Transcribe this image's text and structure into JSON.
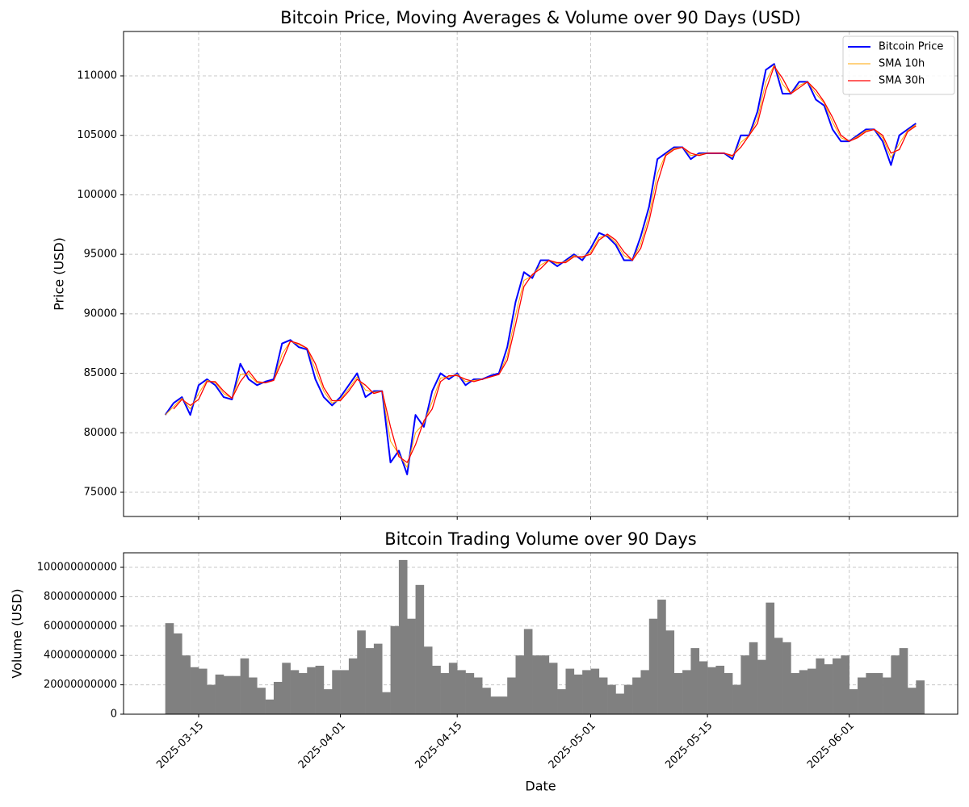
{
  "chart_data": [
    {
      "type": "line",
      "title": "Bitcoin Price, Moving Averages & Volume over 90 Days (USD)",
      "ylabel": "Price (USD)",
      "x": [
        "2025-03-11",
        "2025-03-12",
        "2025-03-13",
        "2025-03-14",
        "2025-03-15",
        "2025-03-16",
        "2025-03-17",
        "2025-03-18",
        "2025-03-19",
        "2025-03-20",
        "2025-03-21",
        "2025-03-22",
        "2025-03-23",
        "2025-03-24",
        "2025-03-25",
        "2025-03-26",
        "2025-03-27",
        "2025-03-28",
        "2025-03-29",
        "2025-03-30",
        "2025-03-31",
        "2025-04-01",
        "2025-04-02",
        "2025-04-03",
        "2025-04-04",
        "2025-04-05",
        "2025-04-06",
        "2025-04-07",
        "2025-04-08",
        "2025-04-09",
        "2025-04-10",
        "2025-04-11",
        "2025-04-12",
        "2025-04-13",
        "2025-04-14",
        "2025-04-15",
        "2025-04-16",
        "2025-04-17",
        "2025-04-18",
        "2025-04-19",
        "2025-04-20",
        "2025-04-21",
        "2025-04-22",
        "2025-04-23",
        "2025-04-24",
        "2025-04-25",
        "2025-04-26",
        "2025-04-27",
        "2025-04-28",
        "2025-04-29",
        "2025-04-30",
        "2025-05-01",
        "2025-05-02",
        "2025-05-03",
        "2025-05-04",
        "2025-05-05",
        "2025-05-06",
        "2025-05-07",
        "2025-05-08",
        "2025-05-09",
        "2025-05-10",
        "2025-05-11",
        "2025-05-12",
        "2025-05-13",
        "2025-05-14",
        "2025-05-15",
        "2025-05-16",
        "2025-05-17",
        "2025-05-18",
        "2025-05-19",
        "2025-05-20",
        "2025-05-21",
        "2025-05-22",
        "2025-05-23",
        "2025-05-24",
        "2025-05-25",
        "2025-05-26",
        "2025-05-27",
        "2025-05-28",
        "2025-05-29",
        "2025-05-30",
        "2025-05-31",
        "2025-06-01",
        "2025-06-02",
        "2025-06-03",
        "2025-06-04",
        "2025-06-05",
        "2025-06-06",
        "2025-06-07",
        "2025-06-08",
        "2025-06-09"
      ],
      "series": [
        {
          "name": "Bitcoin Price",
          "color": "#0000ff",
          "width": 2,
          "values": [
            81500,
            82500,
            83000,
            81500,
            84000,
            84500,
            84000,
            83000,
            82800,
            85800,
            84500,
            84000,
            84300,
            84500,
            87500,
            87800,
            87200,
            87000,
            84500,
            83000,
            82300,
            83000,
            84000,
            85000,
            83000,
            83500,
            83500,
            77500,
            78500,
            76500,
            81500,
            80500,
            83500,
            85000,
            84500,
            85000,
            84000,
            84500,
            84500,
            84800,
            85000,
            87200,
            91000,
            93500,
            93000,
            94500,
            94500,
            94000,
            94500,
            95000,
            94500,
            95500,
            96800,
            96500,
            95800,
            94500,
            94500,
            96500,
            99000,
            103000,
            103500,
            104000,
            104000,
            103000,
            103500,
            103500,
            103500,
            103500,
            103000,
            105000,
            105000,
            107000,
            110500,
            111000,
            108500,
            108500,
            109500,
            109500,
            108000,
            107500,
            105500,
            104500,
            104500,
            105000,
            105500,
            105500,
            104500,
            102500,
            105000,
            105500,
            106000
          ]
        },
        {
          "name": "SMA 10h",
          "color": "#ffa500",
          "width": 1,
          "values": [
            81500,
            82200,
            82900,
            82000,
            83300,
            84400,
            84200,
            83300,
            82900,
            84900,
            84900,
            84200,
            84200,
            84400,
            86600,
            87700,
            87400,
            87100,
            85300,
            83500,
            82500,
            82800,
            83700,
            84700,
            83600,
            83400,
            83500,
            79300,
            78200,
            77100,
            80000,
            80800,
            82600,
            84600,
            84700,
            84900,
            84300,
            84400,
            84500,
            84700,
            84900,
            86500,
            89900,
            92800,
            93200,
            94100,
            94500,
            94200,
            94400,
            94900,
            94700,
            95200,
            96400,
            96600,
            96000,
            94900,
            94500,
            95900,
            98300,
            101800,
            103400,
            103900,
            104000,
            103300,
            103400,
            103500,
            103500,
            103500,
            103200,
            104400,
            105000,
            106400,
            109500,
            110900,
            109300,
            108500,
            109200,
            109500,
            108500,
            107700,
            106100,
            104800,
            104500,
            104900,
            105400,
            105500,
            104800,
            103100,
            104300,
            105400,
            105900
          ]
        },
        {
          "name": "SMA 30h",
          "color": "#ff0000",
          "width": 1.3,
          "values": [
            null,
            82000,
            82800,
            82300,
            82800,
            84300,
            84300,
            83500,
            82900,
            84300,
            85200,
            84300,
            84200,
            84400,
            86000,
            87700,
            87500,
            87100,
            85800,
            83800,
            82700,
            82700,
            83500,
            84500,
            84000,
            83300,
            83500,
            80500,
            78000,
            77500,
            79000,
            81000,
            82000,
            84300,
            84800,
            84800,
            84500,
            84300,
            84500,
            84700,
            84900,
            86100,
            89100,
            92300,
            93300,
            93800,
            94500,
            94300,
            94300,
            94800,
            94800,
            95000,
            96200,
            96700,
            96200,
            95200,
            94500,
            95500,
            97800,
            101000,
            103300,
            103800,
            104000,
            103500,
            103300,
            103500,
            103500,
            103500,
            103300,
            104000,
            105000,
            106000,
            108800,
            110800,
            109800,
            108500,
            109000,
            109500,
            108800,
            107800,
            106500,
            105000,
            104500,
            104800,
            105300,
            105500,
            105000,
            103500,
            103800,
            105300,
            105800
          ]
        }
      ],
      "xlim": [
        "2025-03-06",
        "2025-06-14"
      ],
      "xticks": [
        "2025-03-15",
        "2025-04-01",
        "2025-04-15",
        "2025-05-01",
        "2025-05-15",
        "2025-06-01"
      ],
      "ylim": [
        72965,
        113730
      ],
      "yticks": [
        75000,
        80000,
        85000,
        90000,
        95000,
        100000,
        105000,
        110000
      ],
      "grid": true,
      "legend": "upper right"
    },
    {
      "type": "bar",
      "title": "Bitcoin Trading Volume over 90 Days",
      "ylabel": "Volume (USD)",
      "xlabel": "Date",
      "color": "#808080",
      "x": [
        "2025-03-11",
        "2025-03-12",
        "2025-03-13",
        "2025-03-14",
        "2025-03-15",
        "2025-03-16",
        "2025-03-17",
        "2025-03-18",
        "2025-03-19",
        "2025-03-20",
        "2025-03-21",
        "2025-03-22",
        "2025-03-23",
        "2025-03-24",
        "2025-03-25",
        "2025-03-26",
        "2025-03-27",
        "2025-03-28",
        "2025-03-29",
        "2025-03-30",
        "2025-03-31",
        "2025-04-01",
        "2025-04-02",
        "2025-04-03",
        "2025-04-04",
        "2025-04-05",
        "2025-04-06",
        "2025-04-07",
        "2025-04-08",
        "2025-04-09",
        "2025-04-10",
        "2025-04-11",
        "2025-04-12",
        "2025-04-13",
        "2025-04-14",
        "2025-04-15",
        "2025-04-16",
        "2025-04-17",
        "2025-04-18",
        "2025-04-19",
        "2025-04-20",
        "2025-04-21",
        "2025-04-22",
        "2025-04-23",
        "2025-04-24",
        "2025-04-25",
        "2025-04-26",
        "2025-04-27",
        "2025-04-28",
        "2025-04-29",
        "2025-04-30",
        "2025-05-01",
        "2025-05-02",
        "2025-05-03",
        "2025-05-04",
        "2025-05-05",
        "2025-05-06",
        "2025-05-07",
        "2025-05-08",
        "2025-05-09",
        "2025-05-10",
        "2025-05-11",
        "2025-05-12",
        "2025-05-13",
        "2025-05-14",
        "2025-05-15",
        "2025-05-16",
        "2025-05-17",
        "2025-05-18",
        "2025-05-19",
        "2025-05-20",
        "2025-05-21",
        "2025-05-22",
        "2025-05-23",
        "2025-05-24",
        "2025-05-25",
        "2025-05-26",
        "2025-05-27",
        "2025-05-28",
        "2025-05-29",
        "2025-05-30",
        "2025-05-31",
        "2025-06-01",
        "2025-06-02",
        "2025-06-03",
        "2025-06-04",
        "2025-06-05",
        "2025-06-06",
        "2025-06-07",
        "2025-06-08",
        "2025-06-09"
      ],
      "values": [
        62000000000,
        55000000000,
        40000000000,
        32000000000,
        31000000000,
        20000000000,
        27000000000,
        26000000000,
        26000000000,
        38000000000,
        25000000000,
        18000000000,
        10000000000,
        22000000000,
        35000000000,
        30000000000,
        28000000000,
        32000000000,
        33000000000,
        17000000000,
        30000000000,
        30000000000,
        38000000000,
        57000000000,
        45000000000,
        48000000000,
        15000000000,
        60000000000,
        105000000000,
        65000000000,
        88000000000,
        46000000000,
        33000000000,
        28000000000,
        35000000000,
        30000000000,
        28000000000,
        25000000000,
        18000000000,
        12000000000,
        12000000000,
        25000000000,
        40000000000,
        58000000000,
        40000000000,
        40000000000,
        35000000000,
        17000000000,
        31000000000,
        27000000000,
        30000000000,
        31000000000,
        25000000000,
        20000000000,
        14000000000,
        20000000000,
        25000000000,
        30000000000,
        65000000000,
        78000000000,
        57000000000,
        28000000000,
        30000000000,
        45000000000,
        36000000000,
        32000000000,
        33000000000,
        28000000000,
        20000000000,
        40000000000,
        49000000000,
        37000000000,
        76000000000,
        52000000000,
        49000000000,
        28000000000,
        30000000000,
        31000000000,
        38000000000,
        34000000000,
        38000000000,
        40000000000,
        17000000000,
        25000000000,
        28000000000,
        28000000000,
        25000000000,
        40000000000,
        45000000000,
        18000000000,
        23000000000
      ],
      "xlim": [
        "2025-03-06",
        "2025-06-14"
      ],
      "xticks": [
        "2025-03-15",
        "2025-04-01",
        "2025-04-15",
        "2025-05-01",
        "2025-05-15",
        "2025-06-01"
      ],
      "ylim": [
        0,
        109890000000
      ],
      "yticks": [
        0,
        20000000000,
        40000000000,
        60000000000,
        80000000000,
        100000000000
      ],
      "grid": true
    }
  ]
}
